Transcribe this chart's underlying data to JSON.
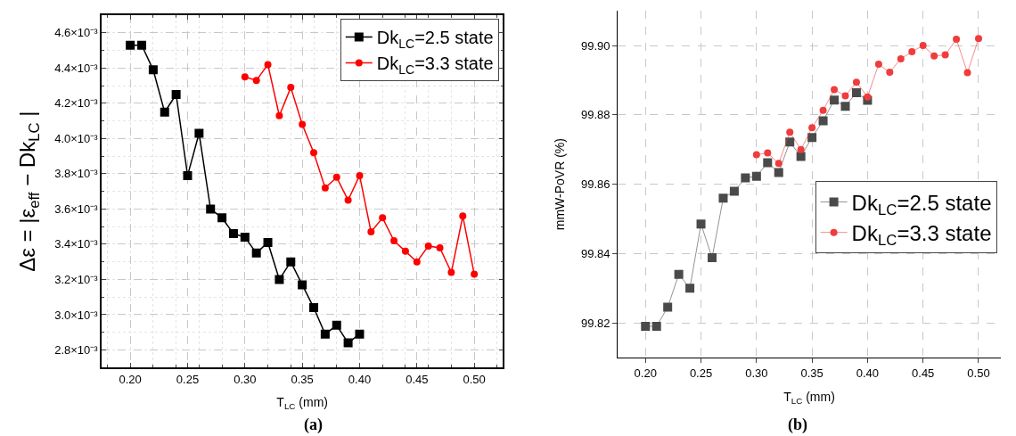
{
  "chart_data": [
    {
      "type": "line",
      "xlabel": "T$_{LC}$ (mm)",
      "ylabel": "Δε = |ε$_{eff}$ − Dk$_{LC}$ |",
      "annotations": [
        "(a)"
      ],
      "xlim": [
        0.175,
        0.525
      ],
      "xticks": [
        {
          "value": 0.2,
          "label": "0.20"
        },
        {
          "value": 0.25,
          "label": "0.25"
        },
        {
          "value": 0.3,
          "label": "0.30"
        },
        {
          "value": 0.35,
          "label": "0.35"
        },
        {
          "value": 0.4,
          "label": "0.40"
        },
        {
          "value": 0.45,
          "label": "0.45"
        },
        {
          "value": 0.5,
          "label": "0.50"
        }
      ],
      "ylim": [
        0.0027,
        0.0047
      ],
      "yticks": [
        {
          "value": 0.0028,
          "label": "2.8×10⁻³"
        },
        {
          "value": 0.003,
          "label": "3.0×10⁻³"
        },
        {
          "value": 0.0032,
          "label": "3.2×10⁻³"
        },
        {
          "value": 0.0034,
          "label": "3.4×10⁻³"
        },
        {
          "value": 0.0036,
          "label": "3.6×10⁻³"
        },
        {
          "value": 0.0038,
          "label": "3.8×10⁻³"
        },
        {
          "value": 0.004,
          "label": "4.0×10⁻³"
        },
        {
          "value": 0.0042,
          "label": "4.2×10⁻³"
        },
        {
          "value": 0.0044,
          "label": "4.4×10⁻³"
        },
        {
          "value": 0.0046,
          "label": "4.6×10⁻³"
        }
      ],
      "grid": true,
      "legend": "top right",
      "line_style": "solid",
      "series": [
        {
          "name": "Dk$_{LC}$=2.5 state",
          "color": "#000000",
          "marker": "square",
          "x": [
            0.2,
            0.21,
            0.22,
            0.23,
            0.24,
            0.25,
            0.26,
            0.27,
            0.28,
            0.29,
            0.3,
            0.31,
            0.32,
            0.33,
            0.34,
            0.35,
            0.36,
            0.37,
            0.38,
            0.39,
            0.4
          ],
          "values": [
            0.00453,
            0.00453,
            0.00439,
            0.00415,
            0.00425,
            0.00379,
            0.00403,
            0.0036,
            0.00355,
            0.00346,
            0.00344,
            0.00335,
            0.00341,
            0.0032,
            0.0033,
            0.00317,
            0.00304,
            0.00289,
            0.00294,
            0.00284,
            0.00289
          ]
        },
        {
          "name": "Dk$_{LC}$=3.3 state",
          "color": "#ff0000",
          "marker": "circle",
          "x": [
            0.3,
            0.31,
            0.32,
            0.33,
            0.34,
            0.35,
            0.36,
            0.37,
            0.38,
            0.39,
            0.4,
            0.41,
            0.42,
            0.43,
            0.44,
            0.45,
            0.46,
            0.47,
            0.48,
            0.49,
            0.5
          ],
          "values": [
            0.00435,
            0.00433,
            0.00442,
            0.00413,
            0.00429,
            0.00408,
            0.00392,
            0.00372,
            0.00378,
            0.00365,
            0.00379,
            0.00347,
            0.00355,
            0.00342,
            0.00336,
            0.0033,
            0.00339,
            0.00338,
            0.00324,
            0.00356,
            0.00323
          ]
        }
      ]
    },
    {
      "type": "line",
      "xlabel": "T$_{LC}$ (mm)",
      "ylabel": "mmW-PoVR (%)",
      "annotations": [
        "(b)"
      ],
      "xlim": [
        0.175,
        0.52
      ],
      "xticks": [
        {
          "value": 0.2,
          "label": "0.20"
        },
        {
          "value": 0.25,
          "label": "0.25"
        },
        {
          "value": 0.3,
          "label": "0.30"
        },
        {
          "value": 0.35,
          "label": "0.35"
        },
        {
          "value": 0.4,
          "label": "0.40"
        },
        {
          "value": 0.45,
          "label": "0.45"
        },
        {
          "value": 0.5,
          "label": "0.50"
        }
      ],
      "ylim": [
        99.81,
        99.91
      ],
      "yticks": [
        {
          "value": 99.82,
          "label": "99.82"
        },
        {
          "value": 99.84,
          "label": "99.84"
        },
        {
          "value": 99.86,
          "label": "99.86"
        },
        {
          "value": 99.88,
          "label": "99.88"
        },
        {
          "value": 99.9,
          "label": "99.90"
        }
      ],
      "grid": true,
      "legend": "bottom right",
      "line_style": "solid",
      "series": [
        {
          "name": "Dk$_{LC}$=2.5 state",
          "color": "#4a4a4a",
          "marker": "square",
          "x": [
            0.2,
            0.21,
            0.22,
            0.23,
            0.24,
            0.25,
            0.26,
            0.27,
            0.28,
            0.29,
            0.3,
            0.31,
            0.32,
            0.33,
            0.34,
            0.35,
            0.36,
            0.37,
            0.38,
            0.39,
            0.4
          ],
          "values": [
            99.819,
            99.819,
            99.8245,
            99.834,
            99.83,
            99.8485,
            99.8388,
            99.856,
            99.858,
            99.8618,
            99.8623,
            99.8662,
            99.8634,
            99.8722,
            99.868,
            99.8735,
            99.8783,
            99.8843,
            99.8825,
            99.8864,
            99.8842
          ]
        },
        {
          "name": "Dk$_{LC}$=3.3 state",
          "color": "#f03c3c",
          "marker": "circle",
          "x": [
            0.3,
            0.31,
            0.32,
            0.33,
            0.34,
            0.35,
            0.36,
            0.37,
            0.38,
            0.39,
            0.4,
            0.41,
            0.42,
            0.43,
            0.44,
            0.45,
            0.46,
            0.47,
            0.48,
            0.49,
            0.5
          ],
          "values": [
            99.8685,
            99.869,
            99.866,
            99.875,
            99.87,
            99.8763,
            99.8813,
            99.8873,
            99.8855,
            99.8894,
            99.8852,
            99.8946,
            99.8923,
            99.8962,
            99.8982,
            99.9,
            99.897,
            99.8973,
            99.9018,
            99.8922,
            99.902
          ]
        }
      ]
    }
  ]
}
